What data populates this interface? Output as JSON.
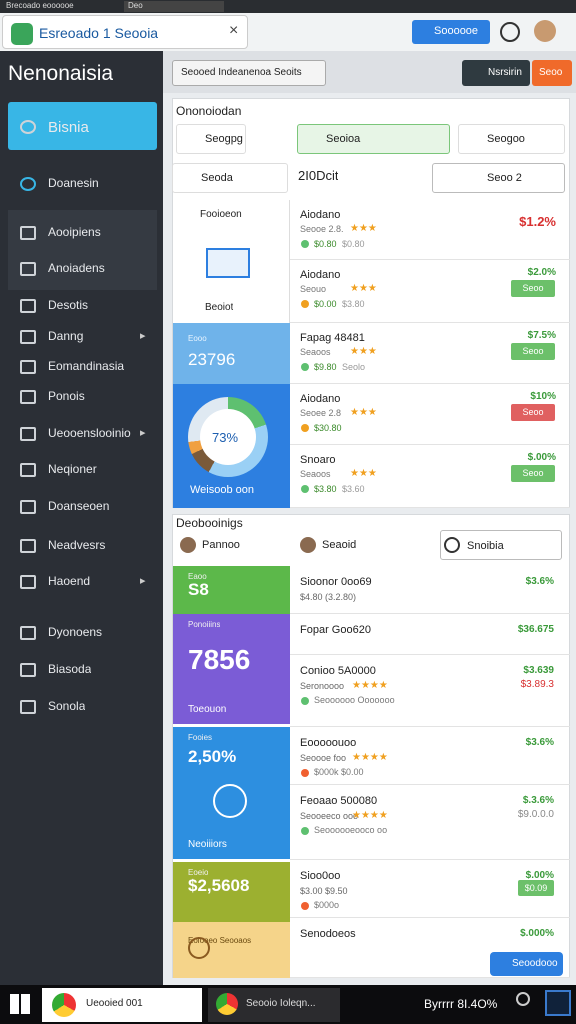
{
  "browser": {
    "tabs": [
      "Brecoado eoooooe",
      "Deo"
    ],
    "active_tab": "Esreoado 1 Seooia",
    "button": "Soooooe"
  },
  "sidebar": {
    "title": "Nenonaisia",
    "items": [
      "Bisnia",
      "Doanesin",
      "Aooipiens",
      "Anoiadens",
      "Desotis",
      "Danng",
      "Eomandinasia",
      "Ponois",
      "Ueooenslooinio",
      "Neqioner",
      "Doanseoen",
      "Neadvesrs",
      "Haoend",
      "Dyonoens",
      "Biasoda",
      "Sonola"
    ]
  },
  "toolbar": {
    "dropdown": "Seooed Indeanenoa Seoits",
    "buttons": [
      "Nsrsirin",
      "Seoo"
    ]
  },
  "panel1": {
    "title": "Ononoiodan",
    "chips": [
      "Seogpg",
      "Seoioa",
      "Seogoo",
      "Seoda"
    ],
    "date": "2I0Dcit",
    "search": "Seoo 2",
    "feature": {
      "title": "Fooioeon",
      "label": "Beoiot",
      "stat_label": "Eooo",
      "stat": "23796",
      "ring": "73%",
      "ring_label": "Weisoob oon"
    },
    "rows": [
      {
        "name": "Aiodano",
        "meta": "Seooe 2.8.",
        "price": "$0.80",
        "old": "$0.80",
        "value": "$1.2%"
      },
      {
        "name": "Aiodano",
        "meta": "Seouo",
        "price": "$0.00",
        "old": "$3.80",
        "value": "$2.0%",
        "badge": "Seoo"
      },
      {
        "name": "Fapag 48481",
        "meta": "Seaoos",
        "price": "$9.80",
        "old": "Seolo",
        "value": "$7.5%",
        "badge": "Seoo"
      },
      {
        "name": "Aiodano",
        "meta": "Seoee 2.8",
        "price": "$30.80",
        "value": "$10%",
        "badge": "Seoo"
      },
      {
        "name": "Snoaro",
        "meta": "Seaoos",
        "price": "$3.80",
        "old": "$3.60",
        "value": "$.00%",
        "badge": "Seoo"
      }
    ]
  },
  "panel2": {
    "title": "Deobooinigs",
    "chips": [
      "Pannoo",
      "Seaoid",
      "Snoibia"
    ],
    "tiles": [
      {
        "label": "Eaoo",
        "value": "S8"
      },
      {
        "label": "Ponoiiins",
        "value": "7856",
        "foot": "Toeouon"
      },
      {
        "label": "Fooies",
        "value": "2,50%",
        "foot": "Neoiiiors"
      },
      {
        "label": "Eoeio",
        "value": "$2,5608"
      },
      {
        "label": "Eoiooeo Seooaos"
      }
    ],
    "rows": [
      {
        "name": "Sioonor 0oo69",
        "meta": "$4.80 (3.2.80)",
        "value": "$3.6%"
      },
      {
        "name": "Fopar Goo620",
        "value": "$36.675"
      },
      {
        "name": "Conioo 5A0000",
        "meta": "Seronoooo",
        "sub": "Seoooooo Ooooooo",
        "value": "$3.639",
        "value2": "$3.89.3"
      },
      {
        "name": "Eooooouoo",
        "meta": "Seoooe foo",
        "sub": "$000k $0.00",
        "value": "$3.6%"
      },
      {
        "name": "Feoaao 500080",
        "meta": "Seooeeco ooo",
        "sub": "Seoooooeooco oo",
        "value": "$.3.6%",
        "value2": "$9.0.0.0"
      },
      {
        "name": "Sioo0oo",
        "meta": "$3.00 $9.50",
        "sub": "$000o",
        "value": "$.00%",
        "badge": "$0.09"
      },
      {
        "name": "Senodoeos",
        "value": "$.000%"
      }
    ],
    "fab": "Seoodooo"
  },
  "taskbar": {
    "items": [
      "Ueooied 001",
      "Seooio Ioleqn..."
    ],
    "clock": "Byrrrr 8I.4O%"
  }
}
